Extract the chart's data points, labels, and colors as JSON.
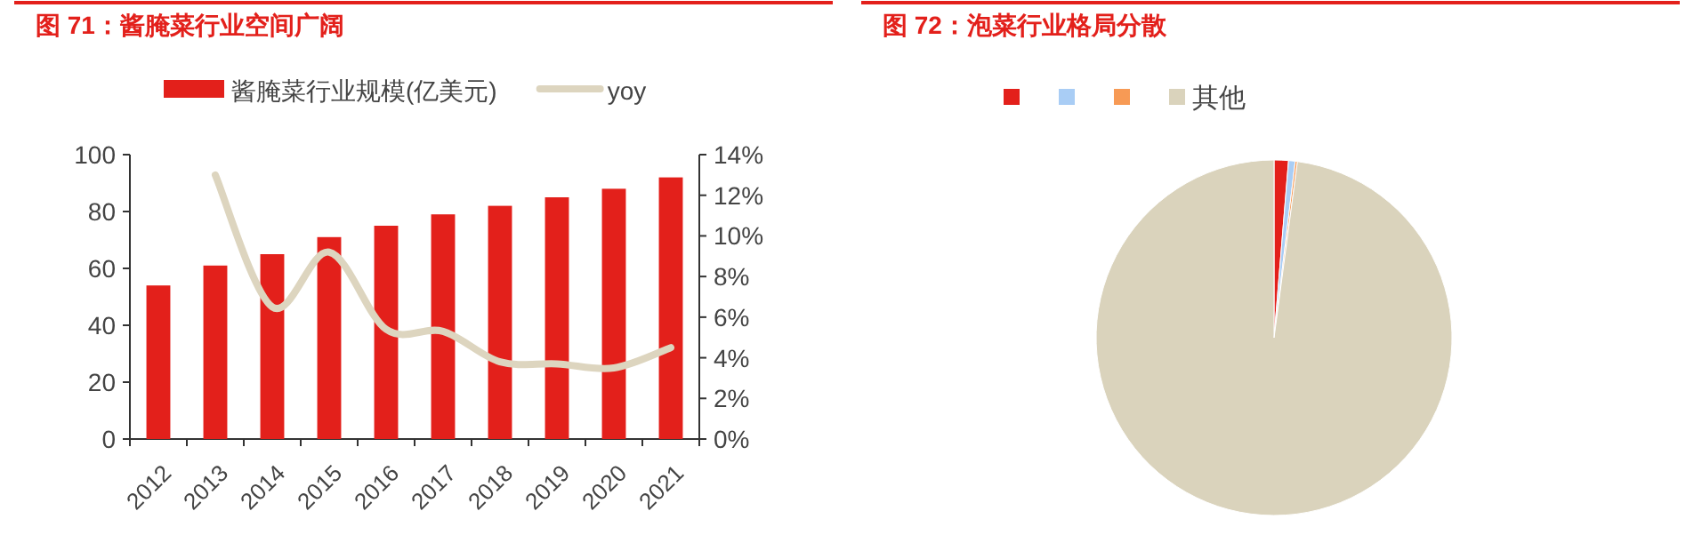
{
  "chart_data": [
    {
      "type": "bar",
      "title": "图 71：酱腌菜行业空间广阔",
      "categories": [
        "2012",
        "2013",
        "2014",
        "2015",
        "2016",
        "2017",
        "2018",
        "2019",
        "2020",
        "2021"
      ],
      "series": [
        {
          "name": "酱腌菜行业规模(亿美元)",
          "color": "#e3201b",
          "values": [
            54,
            61,
            65,
            71,
            75,
            79,
            82,
            85,
            88,
            92
          ]
        },
        {
          "name": "yoy",
          "type": "line",
          "axis": "y2",
          "color": "#ddd5bf",
          "values": [
            null,
            13,
            6.5,
            9.2,
            5.4,
            5.3,
            3.8,
            3.7,
            3.5,
            4.5
          ]
        }
      ],
      "ylim": [
        0,
        100
      ],
      "yticks": [
        0,
        20,
        40,
        60,
        80,
        100
      ],
      "y2lim": [
        0,
        14
      ],
      "y2ticks": [
        {
          "value": 0,
          "label": "0%"
        },
        {
          "value": 2,
          "label": "2%"
        },
        {
          "value": 4,
          "label": "4%"
        },
        {
          "value": 6,
          "label": "6%"
        },
        {
          "value": 8,
          "label": "8%"
        },
        {
          "value": 10,
          "label": "10%"
        },
        {
          "value": 12,
          "label": "12%"
        },
        {
          "value": 14,
          "label": "14%"
        }
      ],
      "legend": "top",
      "grid": false
    },
    {
      "type": "pie",
      "title": "图 72：泡菜行业格局分散",
      "categories": [
        null,
        null,
        null,
        "其他"
      ],
      "values": [
        1.3,
        0.6,
        0.2,
        97.9
      ],
      "colors": [
        "#e3201b",
        "#a9cdf5",
        "#f79a55",
        "#dad3bc"
      ],
      "legend": "top"
    }
  ]
}
